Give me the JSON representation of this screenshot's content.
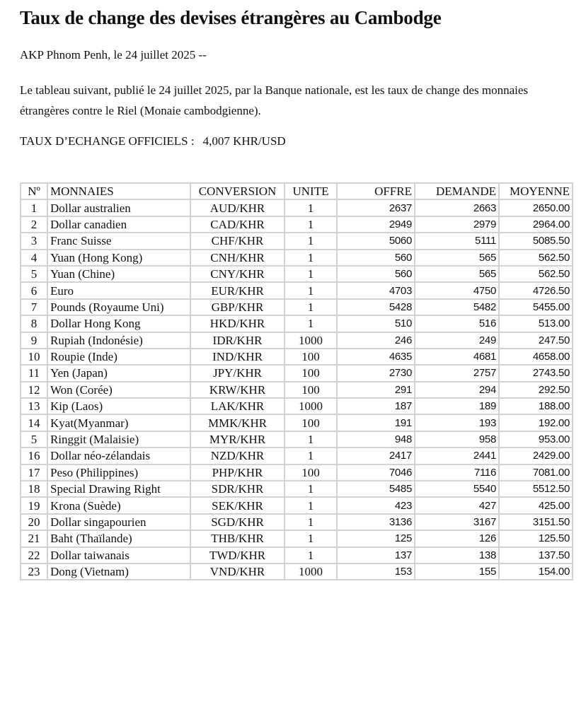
{
  "title": "Taux de change des devises étrangères au Cambodge",
  "dateline": "AKP Phnom Penh, le 24 juillet 2025 --",
  "paragraph": "Le tableau suivant, publié  le 24 juillet 2025, par la Banque nationale, est les taux de change des monnaies étrangères contre le Riel (Monaie cambodgienne).",
  "official_rate": {
    "label": "TAUX D’ECHANGE OFFICIELS :",
    "value": "4,007 KHR/USD"
  },
  "table": {
    "headers": [
      "Nº",
      "MONNAIES",
      "CONVERSION",
      "UNITE",
      "OFFRE",
      "DEMANDE",
      "MOYENNE"
    ],
    "rows": [
      [
        "1",
        "Dollar australien",
        "AUD/KHR",
        "1",
        "2637",
        "2663",
        "2650.00"
      ],
      [
        "2",
        "Dollar canadien",
        "CAD/KHR",
        "1",
        "2949",
        "2979",
        "2964.00"
      ],
      [
        "3",
        "Franc Suisse",
        "CHF/KHR",
        "1",
        "5060",
        "5111",
        "5085.50"
      ],
      [
        "4",
        "Yuan (Hong Kong)",
        "CNH/KHR",
        "1",
        "560",
        "565",
        "562.50"
      ],
      [
        "5",
        "Yuan (Chine)",
        "CNY/KHR",
        "1",
        "560",
        "565",
        "562.50"
      ],
      [
        "6",
        "Euro",
        "EUR/KHR",
        "1",
        "4703",
        "4750",
        "4726.50"
      ],
      [
        "7",
        "Pounds (Royaume Uni)",
        "GBP/KHR",
        "1",
        "5428",
        "5482",
        "5455.00"
      ],
      [
        "8",
        "Dollar Hong Kong",
        "HKD/KHR",
        "1",
        "510",
        "516",
        "513.00"
      ],
      [
        "9",
        "Rupiah (Indonésie)",
        "IDR/KHR",
        "1000",
        "246",
        "249",
        "247.50"
      ],
      [
        "10",
        "Roupie (Inde)",
        "IND/KHR",
        "100",
        "4635",
        "4681",
        "4658.00"
      ],
      [
        "11",
        "Yen (Japan)",
        "JPY/KHR",
        "100",
        "2730",
        "2757",
        "2743.50"
      ],
      [
        "12",
        "Won (Corée)",
        "KRW/KHR",
        "100",
        "291",
        "294",
        "292.50"
      ],
      [
        "13",
        "Kip (Laos)",
        "LAK/KHR",
        "1000",
        "187",
        "189",
        "188.00"
      ],
      [
        "14",
        "Kyat(Myanmar)",
        "MMK/KHR",
        "100",
        "191",
        "193",
        "192.00"
      ],
      [
        "5",
        "Ringgit (Malaisie)",
        "MYR/KHR",
        "1",
        "948",
        "958",
        "953.00"
      ],
      [
        "16",
        "Dollar néo-zélandais",
        "NZD/KHR",
        "1",
        "2417",
        "2441",
        "2429.00"
      ],
      [
        "17",
        "Peso (Philippines)",
        "PHP/KHR",
        "100",
        "7046",
        "7116",
        "7081.00"
      ],
      [
        "18",
        "Special Drawing Right",
        "SDR/KHR",
        "1",
        "5485",
        "5540",
        "5512.50"
      ],
      [
        "19",
        "Krona (Suède)",
        "SEK/KHR",
        "1",
        "423",
        "427",
        "425.00"
      ],
      [
        "20",
        "Dollar singapourien",
        "SGD/KHR",
        "1",
        "3136",
        "3167",
        "3151.50"
      ],
      [
        "21",
        "Baht (Thaïlande)",
        "THB/KHR",
        "1",
        "125",
        "126",
        "125.50"
      ],
      [
        "22",
        "Dollar taiwanais",
        "TWD/KHR",
        "1",
        "137",
        "138",
        "137.50"
      ],
      [
        "23",
        "Dong (Vietnam)",
        "VND/KHR",
        "1000",
        "153",
        "155",
        "154.00"
      ]
    ]
  }
}
